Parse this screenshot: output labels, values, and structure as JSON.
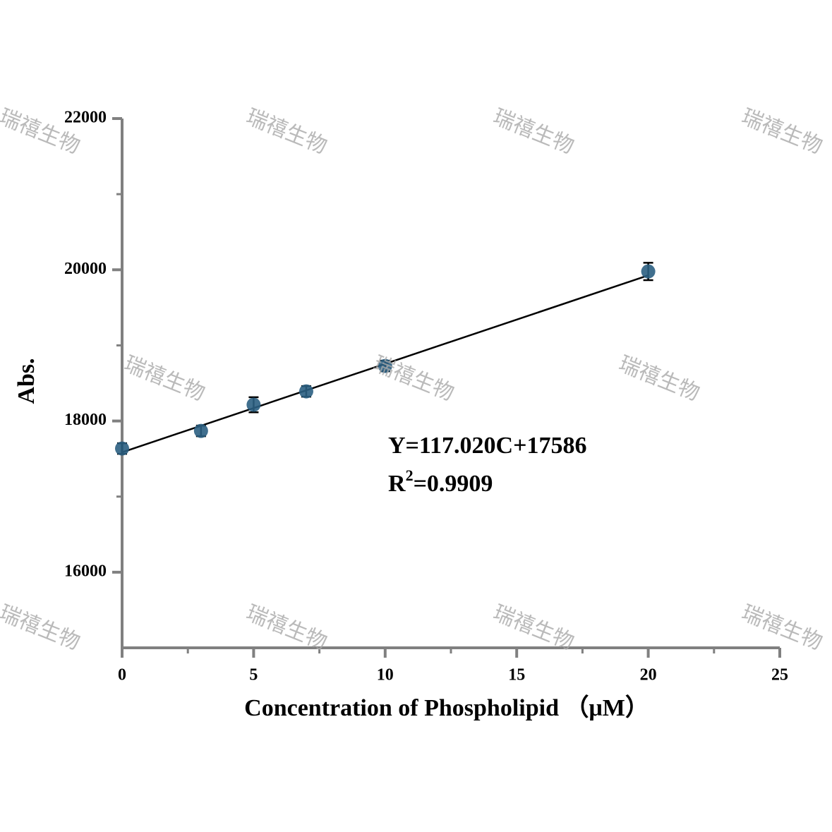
{
  "chart_data": {
    "type": "scatter",
    "x_label": "Concentration of Phospholipid （μM）",
    "y_label": "Abs.",
    "x": [
      0,
      3,
      5,
      7,
      10,
      20
    ],
    "series": [
      {
        "color": "#2b5f82",
        "values": [
          17636,
          17869,
          18215,
          18392,
          18728,
          19978
        ],
        "errors": [
          70,
          70,
          100,
          70,
          70,
          115
        ]
      }
    ],
    "fit": {
      "x": [
        0,
        20
      ],
      "values": [
        17586,
        19926
      ],
      "color": "#000000"
    },
    "equation": "Y=117.020C+17586",
    "r2": {
      "prefix": "R",
      "sup": "2",
      "suffix": "=0.9909"
    },
    "xlim": [
      0,
      25
    ],
    "xticks": [
      0,
      5,
      10,
      15,
      20,
      25
    ],
    "x_minor_ticks": [
      2.5,
      7.5,
      12.5,
      17.5,
      22.5
    ],
    "ylim": [
      15000,
      22000
    ],
    "yticks": [
      16000,
      18000,
      20000,
      22000
    ],
    "y_minor_ticks": [
      17000,
      19000,
      21000
    ],
    "watermark": "瑞禧生物"
  }
}
